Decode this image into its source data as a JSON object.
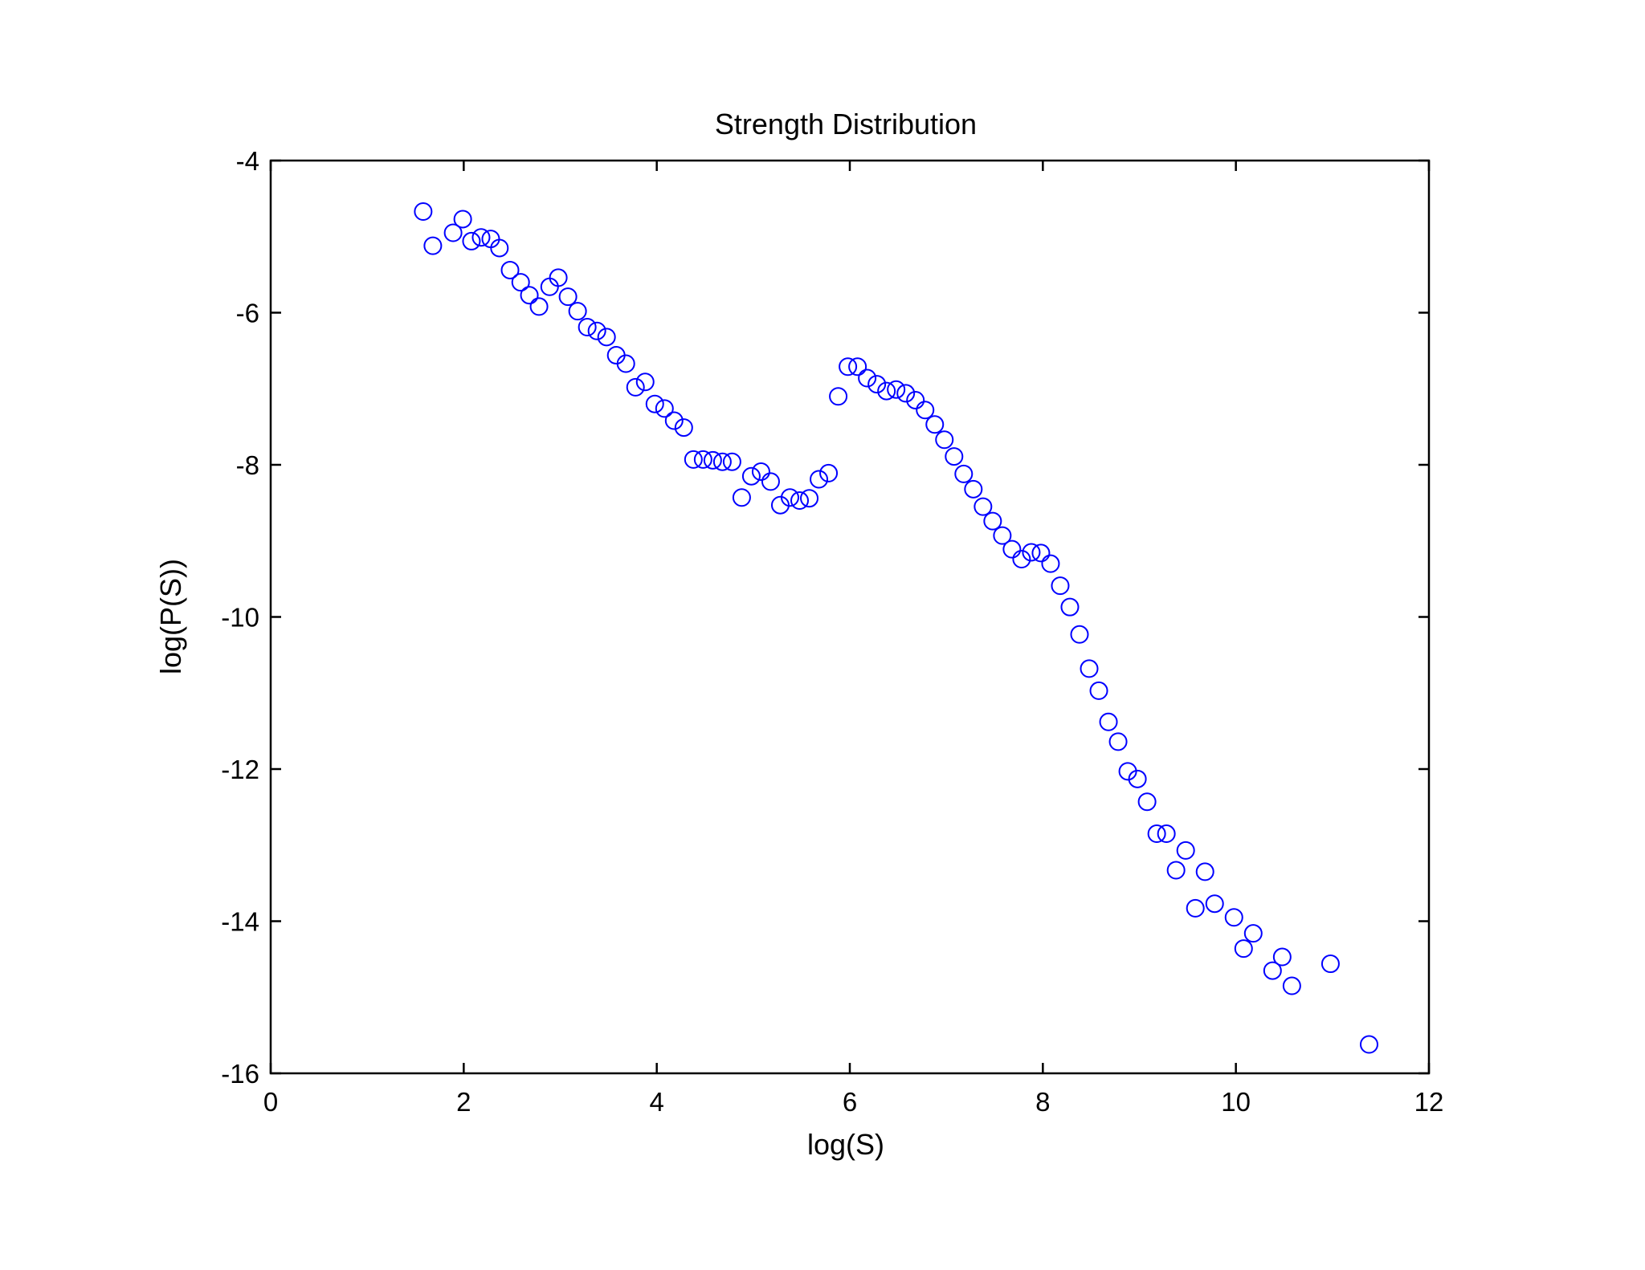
{
  "chart_data": {
    "type": "scatter",
    "title": "Strength Distribution",
    "xlabel": "log(S)",
    "ylabel": "log(P(S))",
    "xlim": [
      0,
      12
    ],
    "ylim": [
      -16,
      -4
    ],
    "xticks": [
      0,
      2,
      4,
      6,
      8,
      10,
      12
    ],
    "yticks": [
      -16,
      -14,
      -12,
      -10,
      -8,
      -6,
      -4
    ],
    "grid": false,
    "marker": "open-circle",
    "marker_color": "#0000ff",
    "series": [
      {
        "name": "P(S)",
        "x": [
          1.58,
          1.68,
          1.89,
          1.99,
          2.08,
          2.18,
          2.28,
          2.37,
          2.48,
          2.59,
          2.68,
          2.78,
          2.89,
          2.98,
          3.08,
          3.18,
          3.28,
          3.38,
          3.48,
          3.58,
          3.68,
          3.78,
          3.88,
          3.98,
          4.08,
          4.18,
          4.28,
          4.38,
          4.48,
          4.58,
          4.68,
          4.78,
          4.88,
          4.98,
          5.08,
          5.18,
          5.28,
          5.38,
          5.48,
          5.58,
          5.68,
          5.78,
          5.88,
          5.98,
          6.08,
          6.18,
          6.28,
          6.38,
          6.48,
          6.58,
          6.68,
          6.78,
          6.88,
          6.98,
          7.08,
          7.18,
          7.28,
          7.38,
          7.48,
          7.58,
          7.68,
          7.78,
          7.88,
          7.98,
          8.08,
          8.18,
          8.28,
          8.38,
          8.48,
          8.58,
          8.68,
          8.78,
          8.88,
          8.98,
          9.08,
          9.18,
          9.28,
          9.38,
          9.48,
          9.58,
          9.68,
          9.78,
          9.98,
          10.08,
          10.18,
          10.38,
          10.48,
          10.58,
          10.98,
          11.38
        ],
        "y": [
          -4.67,
          -5.12,
          -4.95,
          -4.77,
          -5.06,
          -5.01,
          -5.03,
          -5.15,
          -5.44,
          -5.6,
          -5.77,
          -5.92,
          -5.66,
          -5.54,
          -5.79,
          -5.98,
          -6.19,
          -6.24,
          -6.32,
          -6.56,
          -6.67,
          -6.98,
          -6.91,
          -7.2,
          -7.26,
          -7.42,
          -7.51,
          -7.93,
          -7.93,
          -7.94,
          -7.96,
          -7.96,
          -8.43,
          -8.15,
          -8.09,
          -8.22,
          -8.53,
          -8.43,
          -8.47,
          -8.44,
          -8.19,
          -8.11,
          -7.1,
          -6.71,
          -6.71,
          -6.86,
          -6.94,
          -7.03,
          -7.01,
          -7.06,
          -7.15,
          -7.28,
          -7.47,
          -7.67,
          -7.89,
          -8.12,
          -8.32,
          -8.55,
          -8.74,
          -8.93,
          -9.11,
          -9.24,
          -9.15,
          -9.16,
          -9.3,
          -9.59,
          -9.87,
          -10.23,
          -10.68,
          -10.97,
          -11.38,
          -11.64,
          -12.03,
          -12.13,
          -12.43,
          -12.85,
          -12.85,
          -13.33,
          -13.07,
          -13.83,
          -13.35,
          -13.77,
          -13.95,
          -14.36,
          -14.16,
          -14.65,
          -14.47,
          -14.85,
          -14.56,
          -15.62
        ]
      }
    ]
  }
}
